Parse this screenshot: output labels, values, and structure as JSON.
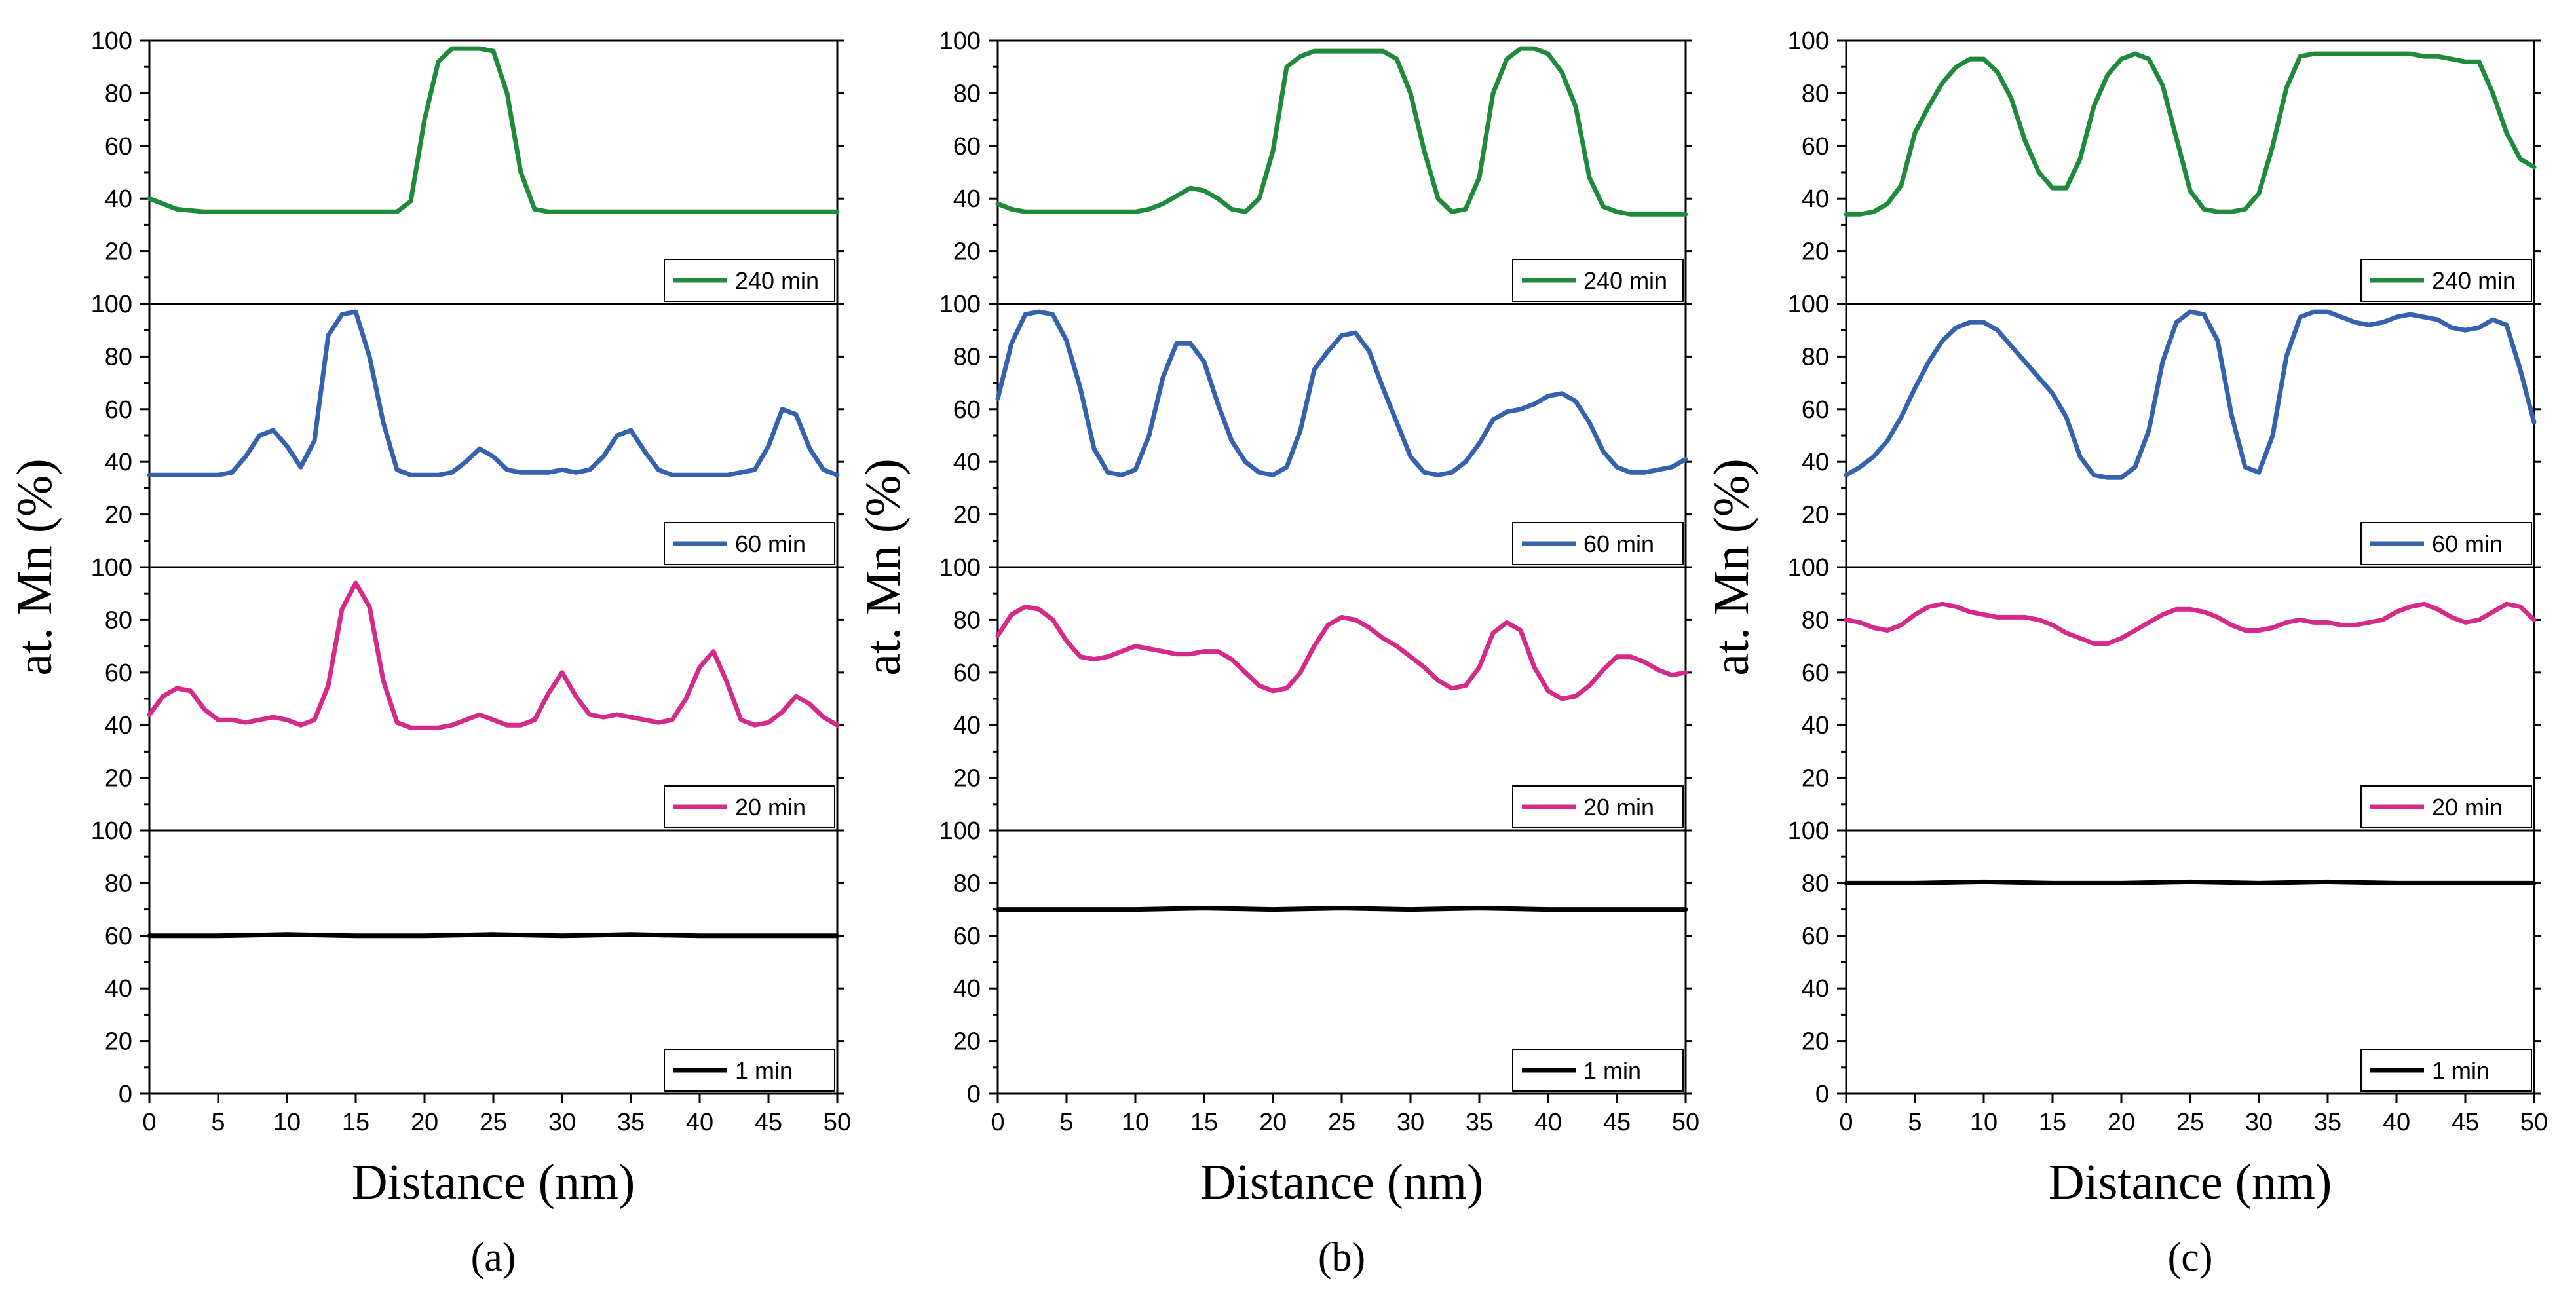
{
  "chart_data": [
    {
      "type": "line",
      "caption": "(a)",
      "xlabel": "Distance (nm)",
      "ylabel": "at. Mn (%)",
      "xlim": [
        0,
        50
      ],
      "xticks": [
        0,
        5,
        10,
        15,
        20,
        25,
        30,
        35,
        40,
        45,
        50
      ],
      "ylim": [
        0,
        100
      ],
      "yticks": [
        0,
        20,
        40,
        60,
        80,
        100
      ],
      "legend_position": "bottom-right",
      "panels": [
        {
          "name": "240 min",
          "color": "#1f8a3c",
          "x": [
            0,
            1,
            2,
            3,
            4,
            5,
            6,
            7,
            8,
            9,
            10,
            11,
            12,
            13,
            14,
            15,
            16,
            17,
            18,
            19,
            20,
            21,
            22,
            23,
            24,
            25,
            26,
            27,
            28,
            29,
            30,
            31,
            32,
            33,
            34,
            35,
            36,
            37,
            38,
            39,
            40,
            41,
            42,
            43,
            44,
            45,
            46,
            47,
            48,
            49,
            50
          ],
          "y": [
            40,
            38,
            36,
            35.5,
            35,
            35,
            35,
            35,
            35,
            35,
            35,
            35,
            35,
            35,
            35,
            35,
            35,
            35,
            35,
            39,
            70,
            92,
            97,
            97,
            97,
            96,
            80,
            50,
            36,
            35,
            35,
            35,
            35,
            35,
            35,
            35,
            35,
            35,
            35,
            35,
            35,
            35,
            35,
            35,
            35,
            35,
            35,
            35,
            35,
            35,
            35
          ]
        },
        {
          "name": "60 min",
          "color": "#3661ad",
          "x": [
            0,
            1,
            2,
            3,
            4,
            5,
            6,
            7,
            8,
            9,
            10,
            11,
            12,
            13,
            14,
            15,
            16,
            17,
            18,
            19,
            20,
            21,
            22,
            23,
            24,
            25,
            26,
            27,
            28,
            29,
            30,
            31,
            32,
            33,
            34,
            35,
            36,
            37,
            38,
            39,
            40,
            41,
            42,
            43,
            44,
            45,
            46,
            47,
            48,
            49,
            50
          ],
          "y": [
            35,
            35,
            35,
            35,
            35,
            35,
            36,
            42,
            50,
            52,
            46,
            38,
            48,
            88,
            96,
            97,
            80,
            55,
            37,
            35,
            35,
            35,
            36,
            40,
            45,
            42,
            37,
            36,
            36,
            36,
            37,
            36,
            37,
            42,
            50,
            52,
            44,
            37,
            35,
            35,
            35,
            35,
            35,
            36,
            37,
            46,
            60,
            58,
            45,
            37,
            35
          ]
        },
        {
          "name": "20 min",
          "color": "#d42a8a",
          "x": [
            0,
            1,
            2,
            3,
            4,
            5,
            6,
            7,
            8,
            9,
            10,
            11,
            12,
            13,
            14,
            15,
            16,
            17,
            18,
            19,
            20,
            21,
            22,
            23,
            24,
            25,
            26,
            27,
            28,
            29,
            30,
            31,
            32,
            33,
            34,
            35,
            36,
            37,
            38,
            39,
            40,
            41,
            42,
            43,
            44,
            45,
            46,
            47,
            48,
            49,
            50
          ],
          "y": [
            44,
            51,
            54,
            53,
            46,
            42,
            42,
            41,
            42,
            43,
            42,
            40,
            42,
            55,
            84,
            94,
            85,
            57,
            41,
            39,
            39,
            39,
            40,
            42,
            44,
            42,
            40,
            40,
            42,
            52,
            60,
            51,
            44,
            43,
            44,
            43,
            42,
            41,
            42,
            50,
            62,
            68,
            56,
            42,
            40,
            41,
            45,
            51,
            48,
            43,
            40
          ]
        },
        {
          "name": "1 min",
          "color": "#000000",
          "x": [
            0,
            5,
            10,
            15,
            20,
            25,
            30,
            35,
            40,
            45,
            50
          ],
          "y": [
            60,
            60,
            60.5,
            60,
            60,
            60.5,
            60,
            60.5,
            60,
            60,
            60
          ]
        }
      ]
    },
    {
      "type": "line",
      "caption": "(b)",
      "xlabel": "Distance (nm)",
      "ylabel": "at. Mn (%)",
      "xlim": [
        0,
        50
      ],
      "xticks": [
        0,
        5,
        10,
        15,
        20,
        25,
        30,
        35,
        40,
        45,
        50
      ],
      "ylim": [
        0,
        100
      ],
      "yticks": [
        0,
        20,
        40,
        60,
        80,
        100
      ],
      "legend_position": "bottom-right",
      "panels": [
        {
          "name": "240 min",
          "color": "#1f8a3c",
          "x": [
            0,
            1,
            2,
            3,
            4,
            5,
            6,
            7,
            8,
            9,
            10,
            11,
            12,
            13,
            14,
            15,
            16,
            17,
            18,
            19,
            20,
            21,
            22,
            23,
            24,
            25,
            26,
            27,
            28,
            29,
            30,
            31,
            32,
            33,
            34,
            35,
            36,
            37,
            38,
            39,
            40,
            41,
            42,
            43,
            44,
            45,
            46,
            47,
            48,
            49,
            50
          ],
          "y": [
            38,
            36,
            35,
            35,
            35,
            35,
            35,
            35,
            35,
            35,
            35,
            36,
            38,
            41,
            44,
            43,
            40,
            36,
            35,
            40,
            58,
            90,
            94,
            96,
            96,
            96,
            96,
            96,
            96,
            93,
            80,
            58,
            40,
            35,
            36,
            48,
            80,
            93,
            97,
            97,
            95,
            88,
            75,
            48,
            37,
            35,
            34,
            34,
            34,
            34,
            34
          ]
        },
        {
          "name": "60 min",
          "color": "#3661ad",
          "x": [
            0,
            1,
            2,
            3,
            4,
            5,
            6,
            7,
            8,
            9,
            10,
            11,
            12,
            13,
            14,
            15,
            16,
            17,
            18,
            19,
            20,
            21,
            22,
            23,
            24,
            25,
            26,
            27,
            28,
            29,
            30,
            31,
            32,
            33,
            34,
            35,
            36,
            37,
            38,
            39,
            40,
            41,
            42,
            43,
            44,
            45,
            46,
            47,
            48,
            49,
            50
          ],
          "y": [
            64,
            85,
            96,
            97,
            96,
            86,
            68,
            45,
            36,
            35,
            37,
            50,
            72,
            85,
            85,
            78,
            62,
            48,
            40,
            36,
            35,
            38,
            52,
            75,
            82,
            88,
            89,
            82,
            68,
            55,
            42,
            36,
            35,
            36,
            40,
            47,
            56,
            59,
            60,
            62,
            65,
            66,
            63,
            55,
            44,
            38,
            36,
            36,
            37,
            38,
            41
          ]
        },
        {
          "name": "20 min",
          "color": "#d42a8a",
          "x": [
            0,
            1,
            2,
            3,
            4,
            5,
            6,
            7,
            8,
            9,
            10,
            11,
            12,
            13,
            14,
            15,
            16,
            17,
            18,
            19,
            20,
            21,
            22,
            23,
            24,
            25,
            26,
            27,
            28,
            29,
            30,
            31,
            32,
            33,
            34,
            35,
            36,
            37,
            38,
            39,
            40,
            41,
            42,
            43,
            44,
            45,
            46,
            47,
            48,
            49,
            50
          ],
          "y": [
            74,
            82,
            85,
            84,
            80,
            72,
            66,
            65,
            66,
            68,
            70,
            69,
            68,
            67,
            67,
            68,
            68,
            65,
            60,
            55,
            53,
            54,
            60,
            70,
            78,
            81,
            80,
            77,
            73,
            70,
            66,
            62,
            57,
            54,
            55,
            62,
            75,
            79,
            76,
            62,
            53,
            50,
            51,
            55,
            61,
            66,
            66,
            64,
            61,
            59,
            60
          ]
        },
        {
          "name": "1 min",
          "color": "#000000",
          "x": [
            0,
            5,
            10,
            15,
            20,
            25,
            30,
            35,
            40,
            45,
            50
          ],
          "y": [
            70,
            70,
            70,
            70.5,
            70,
            70.5,
            70,
            70.5,
            70,
            70,
            70
          ]
        }
      ]
    },
    {
      "type": "line",
      "caption": "(c)",
      "xlabel": "Distance (nm)",
      "ylabel": "at. Mn (%)",
      "xlim": [
        0,
        50
      ],
      "xticks": [
        0,
        5,
        10,
        15,
        20,
        25,
        30,
        35,
        40,
        45,
        50
      ],
      "ylim": [
        0,
        100
      ],
      "yticks": [
        0,
        20,
        40,
        60,
        80,
        100
      ],
      "legend_position": "bottom-right",
      "panels": [
        {
          "name": "240 min",
          "color": "#1f8a3c",
          "x": [
            0,
            1,
            2,
            3,
            4,
            5,
            6,
            7,
            8,
            9,
            10,
            11,
            12,
            13,
            14,
            15,
            16,
            17,
            18,
            19,
            20,
            21,
            22,
            23,
            24,
            25,
            26,
            27,
            28,
            29,
            30,
            31,
            32,
            33,
            34,
            35,
            36,
            37,
            38,
            39,
            40,
            41,
            42,
            43,
            44,
            45,
            46,
            47,
            48,
            49,
            50
          ],
          "y": [
            34,
            34,
            35,
            38,
            45,
            65,
            75,
            84,
            90,
            93,
            93,
            88,
            78,
            62,
            50,
            44,
            44,
            55,
            75,
            87,
            93,
            95,
            93,
            83,
            63,
            43,
            36,
            35,
            35,
            36,
            42,
            60,
            82,
            94,
            95,
            95,
            95,
            95,
            95,
            95,
            95,
            95,
            94,
            94,
            93,
            92,
            92,
            80,
            65,
            55,
            52
          ]
        },
        {
          "name": "60 min",
          "color": "#3661ad",
          "x": [
            0,
            1,
            2,
            3,
            4,
            5,
            6,
            7,
            8,
            9,
            10,
            11,
            12,
            13,
            14,
            15,
            16,
            17,
            18,
            19,
            20,
            21,
            22,
            23,
            24,
            25,
            26,
            27,
            28,
            29,
            30,
            31,
            32,
            33,
            34,
            35,
            36,
            37,
            38,
            39,
            40,
            41,
            42,
            43,
            44,
            45,
            46,
            47,
            48,
            49,
            50
          ],
          "y": [
            35,
            38,
            42,
            48,
            57,
            68,
            78,
            86,
            91,
            93,
            93,
            90,
            84,
            78,
            72,
            66,
            57,
            42,
            35,
            34,
            34,
            38,
            52,
            78,
            93,
            97,
            96,
            86,
            58,
            38,
            36,
            50,
            80,
            95,
            97,
            97,
            95,
            93,
            92,
            93,
            95,
            96,
            95,
            94,
            91,
            90,
            91,
            94,
            92,
            75,
            55
          ]
        },
        {
          "name": "20 min",
          "color": "#d42a8a",
          "x": [
            0,
            1,
            2,
            3,
            4,
            5,
            6,
            7,
            8,
            9,
            10,
            11,
            12,
            13,
            14,
            15,
            16,
            17,
            18,
            19,
            20,
            21,
            22,
            23,
            24,
            25,
            26,
            27,
            28,
            29,
            30,
            31,
            32,
            33,
            34,
            35,
            36,
            37,
            38,
            39,
            40,
            41,
            42,
            43,
            44,
            45,
            46,
            47,
            48,
            49,
            50
          ],
          "y": [
            80,
            79,
            77,
            76,
            78,
            82,
            85,
            86,
            85,
            83,
            82,
            81,
            81,
            81,
            80,
            78,
            75,
            73,
            71,
            71,
            73,
            76,
            79,
            82,
            84,
            84,
            83,
            81,
            78,
            76,
            76,
            77,
            79,
            80,
            79,
            79,
            78,
            78,
            79,
            80,
            83,
            85,
            86,
            84,
            81,
            79,
            80,
            83,
            86,
            85,
            80
          ]
        },
        {
          "name": "1 min",
          "color": "#000000",
          "x": [
            0,
            5,
            10,
            15,
            20,
            25,
            30,
            35,
            40,
            45,
            50
          ],
          "y": [
            80,
            80,
            80.5,
            80,
            80,
            80.5,
            80,
            80.5,
            80,
            80,
            80
          ]
        }
      ]
    }
  ]
}
